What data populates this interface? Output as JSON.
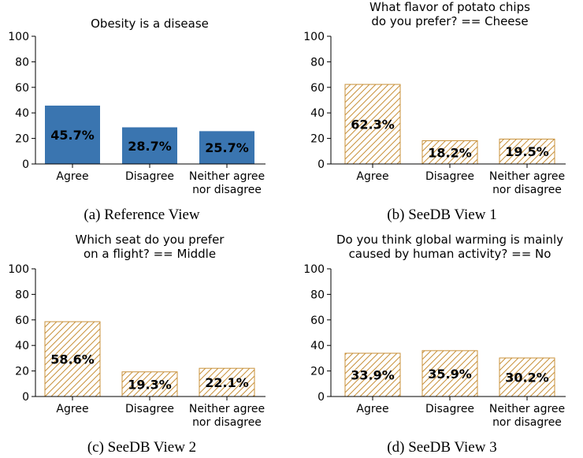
{
  "chart_data": [
    {
      "type": "bar",
      "title": "Obesity is a disease",
      "caption": "(a) Reference View",
      "categories": [
        "Agree",
        "Disagree",
        "Neither agree\nnor disagree"
      ],
      "values": [
        45.7,
        28.7,
        25.7
      ],
      "value_labels": [
        "45.7%",
        "28.7%",
        "25.7%"
      ],
      "color": "#3a75b0",
      "hatch": false,
      "ylim": [
        0,
        100
      ],
      "yticks": [
        0,
        20,
        40,
        60,
        80,
        100
      ]
    },
    {
      "type": "bar",
      "title": "What flavor of potato chips\ndo you prefer? == Cheese",
      "caption": "(b) SeeDB View 1",
      "categories": [
        "Agree",
        "Disagree",
        "Neither agree\nnor disagree"
      ],
      "values": [
        62.3,
        18.2,
        19.5
      ],
      "value_labels": [
        "62.3%",
        "18.2%",
        "19.5%"
      ],
      "color": "#c8913a",
      "hatch": true,
      "ylim": [
        0,
        100
      ],
      "yticks": [
        0,
        20,
        40,
        60,
        80,
        100
      ]
    },
    {
      "type": "bar",
      "title": "Which seat do you prefer\non a flight? == Middle",
      "caption": "(c) SeeDB View 2",
      "categories": [
        "Agree",
        "Disagree",
        "Neither agree\nnor disagree"
      ],
      "values": [
        58.6,
        19.3,
        22.1
      ],
      "value_labels": [
        "58.6%",
        "19.3%",
        "22.1%"
      ],
      "color": "#c8913a",
      "hatch": true,
      "ylim": [
        0,
        100
      ],
      "yticks": [
        0,
        20,
        40,
        60,
        80,
        100
      ]
    },
    {
      "type": "bar",
      "title": "Do you think global warming is mainly\ncaused by human activity? == No",
      "caption": "(d) SeeDB View 3",
      "categories": [
        "Agree",
        "Disagree",
        "Neither agree\nnor disagree"
      ],
      "values": [
        33.9,
        35.9,
        30.2
      ],
      "value_labels": [
        "33.9%",
        "35.9%",
        "30.2%"
      ],
      "color": "#c8913a",
      "hatch": true,
      "ylim": [
        0,
        100
      ],
      "yticks": [
        0,
        20,
        40,
        60,
        80,
        100
      ]
    }
  ]
}
